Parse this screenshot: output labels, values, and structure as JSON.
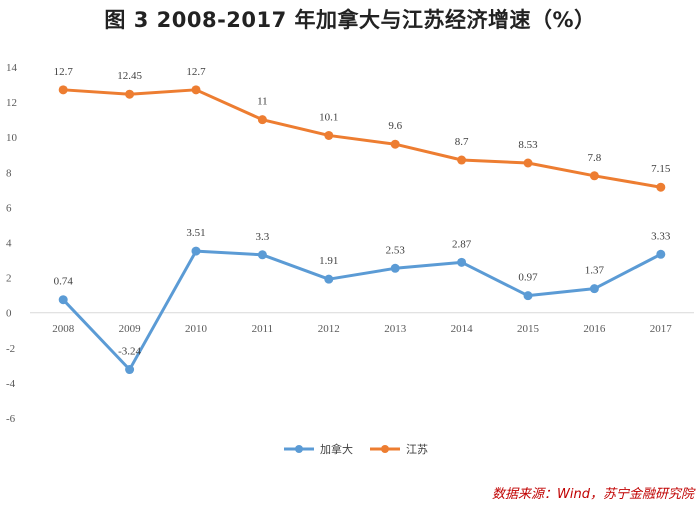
{
  "title": "图 3  2008-2017 年加拿大与江苏经济增速（%）",
  "source": "数据来源：Wind，苏宁金融研究院",
  "chart_data": {
    "type": "line",
    "title": "图 3  2008-2017 年加拿大与江苏经济增速（%）",
    "categories": [
      "2008",
      "2009",
      "2010",
      "2011",
      "2012",
      "2013",
      "2014",
      "2015",
      "2016",
      "2017"
    ],
    "series": [
      {
        "name": "加拿大",
        "color": "#5b9bd5",
        "values": [
          0.74,
          -3.24,
          3.51,
          3.3,
          1.91,
          2.53,
          2.87,
          0.97,
          1.37,
          3.33
        ]
      },
      {
        "name": "江苏",
        "color": "#ed7d31",
        "values": [
          12.7,
          12.45,
          12.7,
          11,
          10.1,
          9.6,
          8.7,
          8.53,
          7.8,
          7.15
        ]
      }
    ],
    "yticks": [
      "14",
      "12",
      "10",
      "8",
      "6",
      "4",
      "2",
      "0",
      "-2",
      "-4",
      "-6"
    ],
    "ylim": [
      -6,
      14
    ],
    "grid": false,
    "legend_position": "bottom"
  }
}
